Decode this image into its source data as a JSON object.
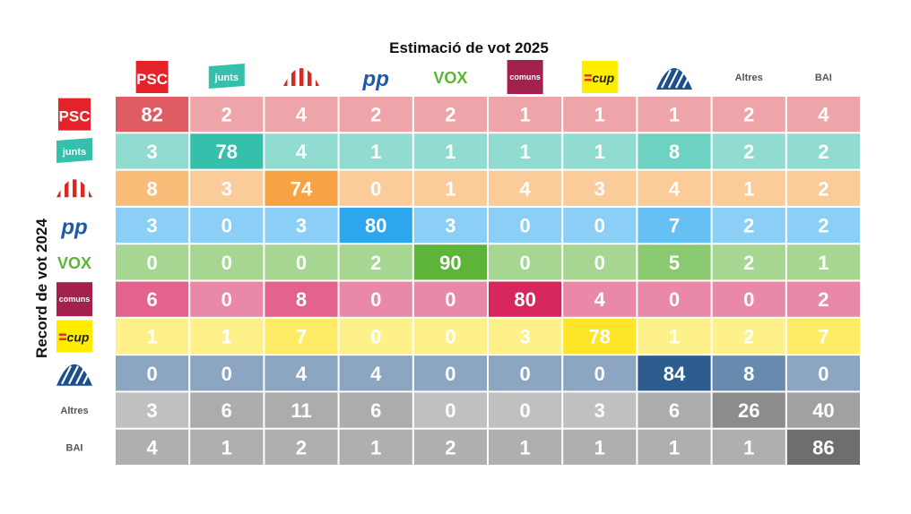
{
  "chart_data": {
    "type": "heatmap",
    "title": "Estimació de vot 2025",
    "xlabel": "",
    "ylabel": "Record de vot 2024",
    "columns": [
      "PSC",
      "junts",
      "ERC",
      "PP",
      "VOX",
      "comuns",
      "cup",
      "AC",
      "Altres",
      "BAI"
    ],
    "rows": [
      "PSC",
      "junts",
      "ERC",
      "PP",
      "VOX",
      "comuns",
      "cup",
      "AC",
      "Altres",
      "BAI"
    ],
    "row_colors": [
      "#e05c63",
      "#35c0ac",
      "#f7a345",
      "#2ca7ee",
      "#5cb438",
      "#d8265f",
      "#ffe52a",
      "#2d5c8e",
      "#8c8c8c",
      "#6e6e6e"
    ],
    "values": [
      [
        82,
        2,
        4,
        2,
        2,
        1,
        1,
        1,
        2,
        4
      ],
      [
        3,
        78,
        4,
        1,
        1,
        1,
        1,
        8,
        2,
        2
      ],
      [
        8,
        3,
        74,
        0,
        1,
        4,
        3,
        4,
        1,
        2
      ],
      [
        3,
        0,
        3,
        80,
        3,
        0,
        0,
        7,
        2,
        2
      ],
      [
        0,
        0,
        0,
        2,
        90,
        0,
        0,
        5,
        2,
        1
      ],
      [
        6,
        0,
        8,
        0,
        0,
        80,
        4,
        0,
        0,
        2
      ],
      [
        1,
        1,
        7,
        0,
        0,
        3,
        78,
        1,
        2,
        7
      ],
      [
        0,
        0,
        4,
        4,
        0,
        0,
        0,
        84,
        8,
        0
      ],
      [
        3,
        6,
        11,
        6,
        0,
        0,
        3,
        6,
        26,
        40
      ],
      [
        4,
        1,
        2,
        1,
        2,
        1,
        1,
        1,
        1,
        86
      ]
    ],
    "legend": "none",
    "grid": false
  },
  "logos": {
    "PSC": {
      "text": "PSC",
      "bg": "#e52229",
      "fg": "#ffffff"
    },
    "junts": {
      "text": "junts",
      "bg": "#35c0ac",
      "fg": "#ffffff"
    },
    "PP": {
      "text": "PP",
      "fg": "#1d5aa8"
    },
    "VOX": {
      "text": "VOX",
      "fg": "#5cb438"
    },
    "comuns": {
      "text": "comuns",
      "bg": "#a3204f",
      "fg": "#ffffff"
    },
    "cup": {
      "text": "cup",
      "bg": "#ffed00",
      "fg": "#222222"
    },
    "ERC": {
      "icon": "erc-stripes-icon",
      "color": "#d62a27"
    },
    "AC": {
      "icon": "ac-globe-icon",
      "color": "#1d4f8c"
    },
    "Altres": {
      "text": "Altres",
      "fg": "#555555"
    },
    "BAI": {
      "text": "BAI",
      "fg": "#555555"
    }
  }
}
